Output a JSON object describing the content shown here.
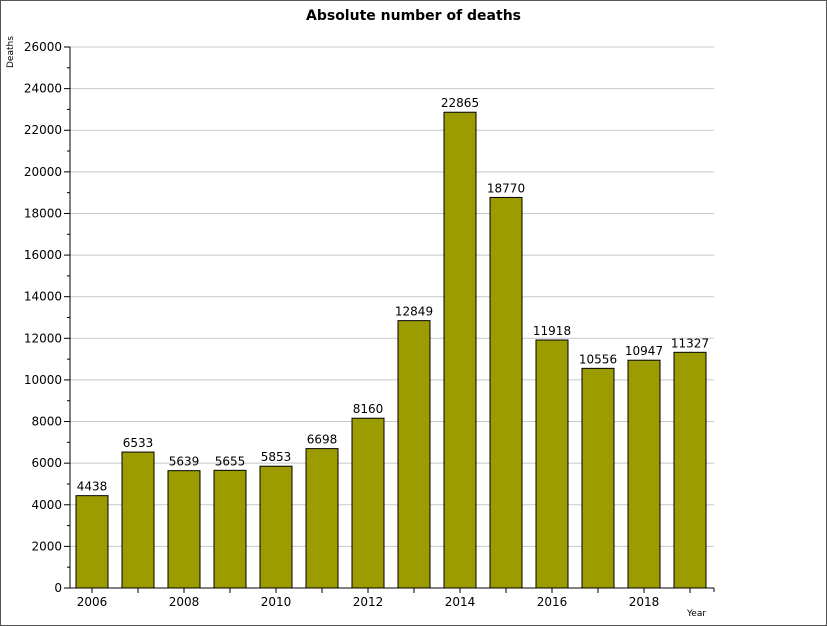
{
  "chart_data": {
    "type": "bar",
    "title": "Absolute number of deaths",
    "xlabel": "Year",
    "ylabel": "Deaths",
    "categories": [
      "2006",
      "2007",
      "2008",
      "2009",
      "2010",
      "2011",
      "2012",
      "2013",
      "2014",
      "2015",
      "2016",
      "2017",
      "2018",
      "2019"
    ],
    "values": [
      4438,
      6533,
      5639,
      5655,
      5853,
      6698,
      8160,
      12849,
      22865,
      18770,
      11918,
      10556,
      10947,
      11327
    ],
    "x_tick_labels": [
      "2006",
      "2008",
      "2010",
      "2012",
      "2014",
      "2016",
      "2018"
    ],
    "y_tick_labels": [
      "0",
      "2000",
      "4000",
      "6000",
      "8000",
      "10000",
      "12000",
      "14000",
      "16000",
      "18000",
      "20000",
      "22000",
      "24000",
      "26000"
    ],
    "ylim": [
      0,
      26000
    ],
    "ytick_step": 2000,
    "grid": true,
    "bar_color": "#9c9c00",
    "bar_edge_color": "#000000",
    "grid_color": "#c8c8c8"
  }
}
